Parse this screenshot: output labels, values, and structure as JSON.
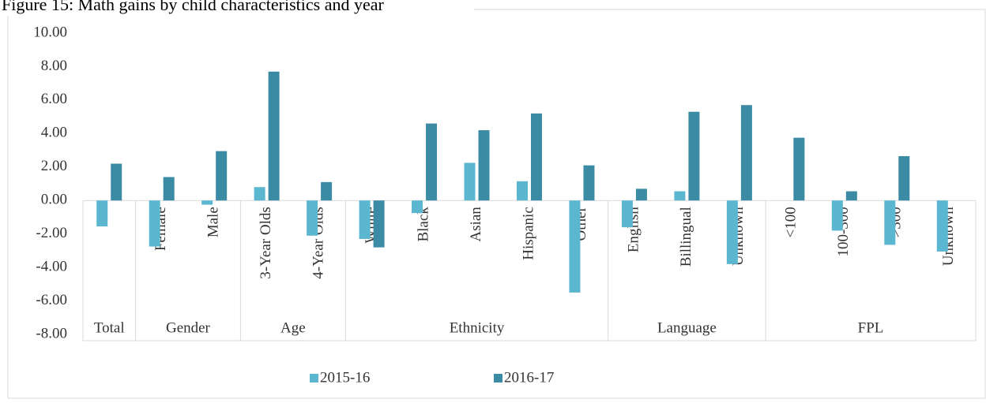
{
  "chart_data": {
    "type": "bar",
    "title": "Figure 15: Math gains by child characteristics and year",
    "categories": [
      null,
      "Female",
      "Male",
      "3-Year Olds",
      "4-Year Olds",
      "White",
      "Black",
      "Asian",
      "Hispanic",
      "Other",
      "English",
      "Billingual",
      "Unknown",
      "<100",
      "100-300",
      ">300",
      "Unknown"
    ],
    "groups": [
      {
        "label": "Total",
        "categories": 1
      },
      {
        "label": "Gender",
        "categories": 2
      },
      {
        "label": "Age",
        "categories": 2
      },
      {
        "label": "Ethnicity",
        "categories": 5
      },
      {
        "label": "Language",
        "categories": 3
      },
      {
        "label": "FPL",
        "categories": 4
      }
    ],
    "series": [
      {
        "name": "2015-16",
        "color": "#5bb6d0",
        "values": [
          -1.55,
          -2.75,
          -0.25,
          0.8,
          -2.1,
          -2.3,
          -0.75,
          2.25,
          1.15,
          -5.5,
          -1.6,
          0.55,
          -3.8,
          null,
          -1.8,
          -2.65,
          -3.05
        ]
      },
      {
        "name": "2016-17",
        "color": "#3a8ba3",
        "values": [
          2.2,
          1.4,
          2.95,
          7.7,
          1.1,
          -2.8,
          4.6,
          4.2,
          5.2,
          2.1,
          0.7,
          5.3,
          5.7,
          3.75,
          0.55,
          2.65,
          null
        ]
      }
    ],
    "ylim": [
      -8,
      10
    ],
    "yticks": [
      {
        "value": -8,
        "label": "-8.00"
      },
      {
        "value": -6,
        "label": "-6.00"
      },
      {
        "value": -4,
        "label": "-4.00"
      },
      {
        "value": -2,
        "label": "-2.00"
      },
      {
        "value": 0,
        "label": "0.00"
      },
      {
        "value": 2,
        "label": "2.00"
      },
      {
        "value": 4,
        "label": "4.00"
      },
      {
        "value": 6,
        "label": "6.00"
      },
      {
        "value": 8,
        "label": "8.00"
      },
      {
        "value": 10,
        "label": "10.00"
      }
    ],
    "legend": "bottom"
  }
}
